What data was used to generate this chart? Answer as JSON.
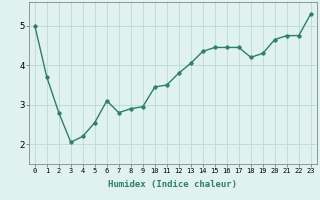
{
  "x": [
    0,
    1,
    2,
    3,
    4,
    5,
    6,
    7,
    8,
    9,
    10,
    11,
    12,
    13,
    14,
    15,
    16,
    17,
    18,
    19,
    20,
    21,
    22,
    23
  ],
  "y": [
    5.0,
    3.7,
    2.8,
    2.05,
    2.2,
    2.55,
    3.1,
    2.8,
    2.9,
    2.95,
    3.45,
    3.5,
    3.8,
    4.05,
    4.35,
    4.45,
    4.45,
    4.45,
    4.2,
    4.3,
    4.65,
    4.75,
    4.75,
    5.3
  ],
  "line_color": "#2e7d6e",
  "marker": "o",
  "marker_size": 2.5,
  "linewidth": 1.0,
  "bg_color": "#dff2ee",
  "grid_color": "#c0ddd8",
  "xlabel": "Humidex (Indice chaleur)",
  "ylabel": "",
  "title": "",
  "xlim": [
    -0.5,
    23.5
  ],
  "ylim": [
    1.5,
    5.6
  ],
  "yticks": [
    2,
    3,
    4,
    5
  ],
  "xticks": [
    0,
    1,
    2,
    3,
    4,
    5,
    6,
    7,
    8,
    9,
    10,
    11,
    12,
    13,
    14,
    15,
    16,
    17,
    18,
    19,
    20,
    21,
    22,
    23
  ],
  "xtick_fontsize": 5.0,
  "ytick_fontsize": 6.5,
  "xlabel_fontsize": 6.5
}
